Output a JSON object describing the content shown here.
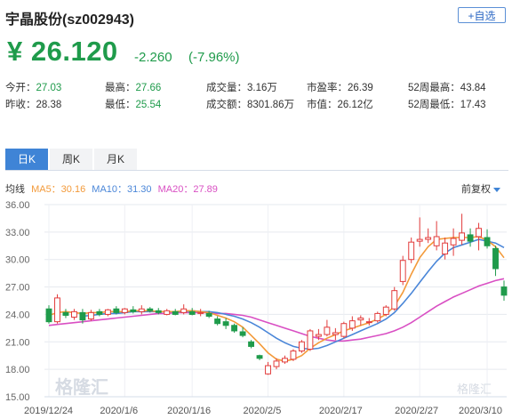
{
  "header": {
    "title": "宇晶股份(sz002943)",
    "add_label": "+自选",
    "price": "¥ 26.120",
    "change": "-2.260",
    "change_pct": "(-7.96%)"
  },
  "stats": [
    {
      "label": "今开：",
      "value": "27.03",
      "tone": "green"
    },
    {
      "label": "最高：",
      "value": "27.66",
      "tone": "green"
    },
    {
      "label": "成交量：",
      "value": "3.16万",
      "tone": "plain"
    },
    {
      "label": "市盈率：",
      "value": "26.39",
      "tone": "plain"
    },
    {
      "label": "52周最高：",
      "value": "43.84",
      "tone": "plain"
    },
    {
      "label": "昨收：",
      "value": "28.38",
      "tone": "plain"
    },
    {
      "label": "最低：",
      "value": "25.54",
      "tone": "green"
    },
    {
      "label": "成交额：",
      "value": "8301.86万",
      "tone": "plain"
    },
    {
      "label": "市值：",
      "value": "26.12亿",
      "tone": "plain"
    },
    {
      "label": "52周最低：",
      "value": "17.43",
      "tone": "plain"
    }
  ],
  "tabs": [
    "日K",
    "周K",
    "月K"
  ],
  "legend": {
    "base": "均线",
    "ma5": "MA5：30.16",
    "ma10": "MA10：31.30",
    "ma20": "MA20：27.89",
    "adjust": "前复权"
  },
  "colors": {
    "up": "#e23b3b",
    "down": "#1f9b4b",
    "ma5": "#f39a3a",
    "ma10": "#4a86d8",
    "ma20": "#d94fc3"
  },
  "chart_data": {
    "type": "candlestick",
    "y_ticks": [
      "36.00",
      "33.00",
      "30.00",
      "27.00",
      "24.00",
      "21.00",
      "18.00",
      "15.00"
    ],
    "ylim": [
      15,
      36
    ],
    "x_labels": [
      "2019/12/24",
      "2020/1/6",
      "2020/1/16",
      "2020/2/5",
      "2020/2/17",
      "2020/2/27",
      "2020/3/10"
    ],
    "x_label_index": [
      0,
      9,
      17,
      26,
      35,
      44,
      52
    ],
    "candles": [
      [
        24.6,
        25.0,
        23.0,
        23.2
      ],
      [
        23.2,
        26.2,
        23.0,
        25.8
      ],
      [
        24.2,
        24.6,
        23.6,
        23.9
      ],
      [
        23.7,
        24.6,
        23.4,
        24.3
      ],
      [
        24.2,
        24.6,
        23.0,
        23.4
      ],
      [
        23.5,
        24.5,
        23.3,
        24.2
      ],
      [
        24.3,
        24.6,
        23.8,
        24.0
      ],
      [
        24.0,
        24.6,
        23.8,
        24.5
      ],
      [
        24.6,
        24.9,
        24.0,
        24.2
      ],
      [
        24.2,
        24.7,
        24.0,
        24.6
      ],
      [
        24.5,
        24.9,
        24.1,
        24.3
      ],
      [
        24.3,
        25.0,
        24.0,
        24.6
      ],
      [
        24.6,
        24.8,
        24.2,
        24.4
      ],
      [
        24.4,
        24.7,
        24.0,
        24.2
      ],
      [
        24.0,
        24.6,
        23.9,
        24.4
      ],
      [
        24.3,
        24.6,
        23.9,
        24.0
      ],
      [
        24.2,
        25.1,
        24.0,
        24.6
      ],
      [
        24.3,
        24.7,
        23.9,
        24.0
      ],
      [
        24.1,
        24.6,
        23.8,
        24.2
      ],
      [
        24.1,
        24.4,
        23.6,
        23.8
      ],
      [
        23.5,
        23.8,
        22.8,
        23.0
      ],
      [
        23.2,
        23.6,
        22.4,
        22.8
      ],
      [
        22.8,
        23.0,
        22.0,
        22.2
      ],
      [
        22.1,
        22.6,
        21.5,
        21.7
      ],
      [
        21.0,
        21.2,
        20.3,
        20.5
      ],
      [
        19.5,
        19.6,
        19.0,
        19.2
      ],
      [
        17.5,
        18.8,
        17.4,
        18.4
      ],
      [
        18.3,
        19.2,
        18.0,
        18.9
      ],
      [
        18.8,
        19.5,
        18.6,
        19.2
      ],
      [
        19.1,
        20.2,
        18.9,
        20.0
      ],
      [
        20.0,
        21.2,
        19.8,
        21.0
      ],
      [
        20.2,
        22.4,
        20.0,
        22.2
      ],
      [
        21.6,
        22.4,
        21.2,
        21.8
      ],
      [
        21.8,
        23.4,
        21.6,
        22.6
      ],
      [
        21.8,
        22.5,
        21.2,
        22.0
      ],
      [
        21.6,
        23.2,
        21.4,
        23.0
      ],
      [
        22.5,
        23.8,
        22.2,
        23.3
      ],
      [
        23.4,
        23.9,
        22.8,
        23.6
      ],
      [
        23.2,
        23.6,
        22.8,
        23.2
      ],
      [
        23.3,
        24.3,
        23.1,
        24.1
      ],
      [
        24.0,
        25.0,
        23.8,
        24.8
      ],
      [
        24.6,
        27.0,
        24.4,
        26.6
      ],
      [
        27.6,
        30.4,
        27.2,
        29.9
      ],
      [
        30.0,
        32.4,
        29.6,
        31.9
      ],
      [
        32.0,
        34.6,
        31.4,
        32.2
      ],
      [
        32.2,
        33.4,
        31.8,
        32.4
      ],
      [
        31.5,
        34.2,
        31.0,
        32.5
      ],
      [
        30.6,
        32.4,
        30.0,
        31.8
      ],
      [
        31.6,
        33.4,
        30.4,
        32.3
      ],
      [
        32.1,
        35.0,
        31.6,
        32.9
      ],
      [
        32.7,
        33.4,
        31.4,
        32.0
      ],
      [
        32.5,
        34.0,
        31.0,
        33.4
      ],
      [
        32.4,
        33.3,
        31.2,
        31.5
      ],
      [
        31.2,
        31.5,
        28.2,
        29.0
      ],
      [
        27.0,
        27.7,
        25.5,
        26.1
      ]
    ],
    "ma5": [
      23.9,
      24.2,
      24.3,
      24.2,
      24.1,
      24.2,
      24.2,
      24.3,
      24.3,
      24.3,
      24.4,
      24.4,
      24.4,
      24.3,
      24.3,
      24.3,
      24.4,
      24.4,
      24.3,
      24.2,
      23.9,
      23.6,
      23.2,
      22.6,
      21.7,
      20.8,
      19.8,
      19.1,
      18.9,
      19.1,
      19.5,
      20.3,
      20.9,
      21.4,
      21.8,
      22.2,
      22.5,
      22.8,
      23.1,
      23.5,
      24.0,
      24.9,
      26.4,
      28.4,
      30.2,
      31.4,
      32.2,
      32.3,
      32.4,
      32.4,
      32.4,
      32.5,
      32.1,
      31.4,
      30.2
    ],
    "ma10": [
      null,
      null,
      null,
      null,
      23.8,
      23.9,
      24.0,
      24.1,
      24.1,
      24.2,
      24.3,
      24.3,
      24.3,
      24.3,
      24.3,
      24.3,
      24.3,
      24.4,
      24.3,
      24.3,
      24.2,
      24.0,
      23.8,
      23.5,
      23.1,
      22.6,
      22.0,
      21.4,
      20.9,
      20.5,
      20.3,
      20.2,
      20.3,
      20.6,
      21.0,
      21.4,
      21.8,
      22.2,
      22.6,
      23.0,
      23.5,
      24.2,
      25.2,
      26.3,
      27.5,
      28.7,
      29.8,
      30.7,
      31.3,
      31.6,
      31.9,
      32.2,
      32.0,
      31.8,
      31.3
    ],
    "ma20": [
      22.8,
      22.9,
      23.0,
      23.1,
      23.2,
      23.3,
      23.4,
      23.5,
      23.6,
      23.7,
      23.8,
      23.9,
      24.0,
      24.1,
      24.1,
      24.2,
      24.2,
      24.2,
      24.2,
      24.2,
      24.1,
      24.1,
      24.0,
      23.9,
      23.7,
      23.4,
      23.1,
      22.8,
      22.5,
      22.2,
      21.9,
      21.6,
      21.4,
      21.2,
      21.1,
      21.1,
      21.2,
      21.3,
      21.5,
      21.7,
      21.9,
      22.2,
      22.6,
      23.1,
      23.7,
      24.3,
      24.9,
      25.4,
      25.9,
      26.3,
      26.7,
      27.1,
      27.4,
      27.7,
      27.9
    ]
  },
  "watermark": "格隆汇"
}
